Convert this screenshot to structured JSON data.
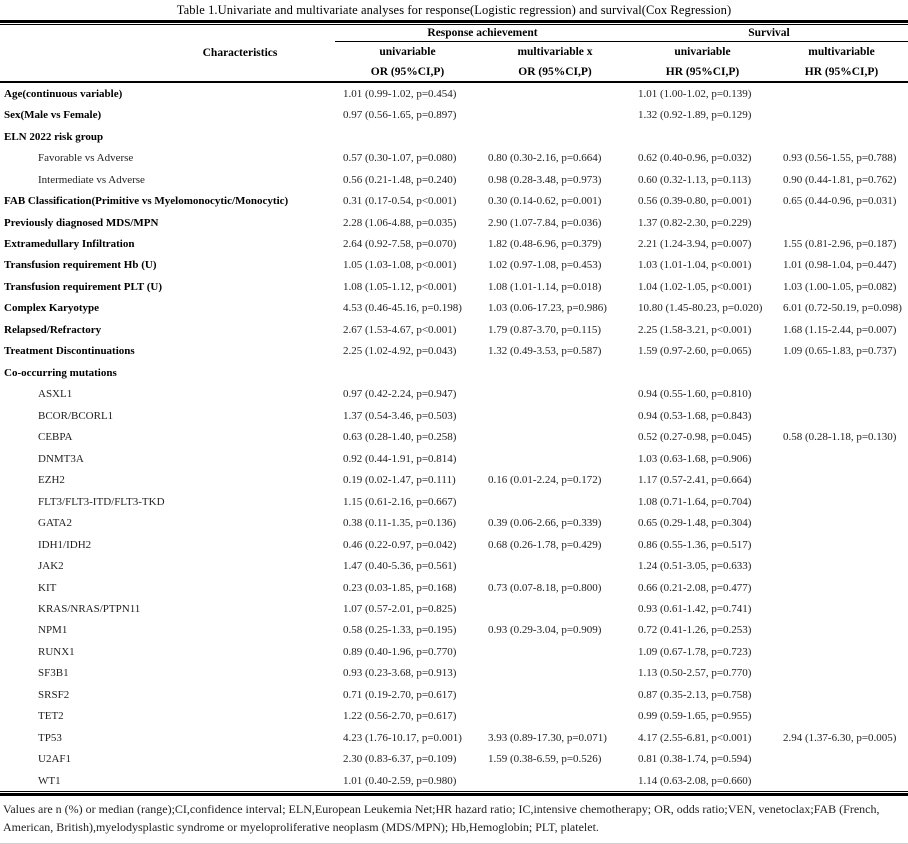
{
  "title": "Table 1.Univariate and multivariate analyses for response(Logistic regression) and survival(Cox Regression)",
  "header": {
    "characteristics": "Characteristics",
    "groups": [
      {
        "label": "Response achievement"
      },
      {
        "label": "Survival"
      }
    ],
    "subcols": [
      {
        "label": "univariable",
        "measure": "OR (95%CI,P)"
      },
      {
        "label": "multivariable x",
        "measure": "OR (95%CI,P)"
      },
      {
        "label": "univariable",
        "measure": "HR (95%CI,P)"
      },
      {
        "label": "multivariable",
        "measure": "HR (95%CI,P)"
      }
    ]
  },
  "rows": [
    {
      "label": "Age(continuous variable)",
      "indent": false,
      "values": [
        "1.01 (0.99-1.02, p=0.454)",
        "",
        "1.01 (1.00-1.02, p=0.139)",
        ""
      ]
    },
    {
      "label": "Sex(Male vs Female)",
      "indent": false,
      "values": [
        "0.97 (0.56-1.65, p=0.897)",
        "",
        "1.32 (0.92-1.89, p=0.129)",
        ""
      ]
    },
    {
      "label": "ELN 2022 risk group",
      "indent": false,
      "values": [
        "",
        "",
        "",
        ""
      ]
    },
    {
      "label": "Favorable vs Adverse",
      "indent": true,
      "values": [
        "0.57 (0.30-1.07, p=0.080)",
        "0.80 (0.30-2.16, p=0.664)",
        "0.62 (0.40-0.96, p=0.032)",
        "0.93 (0.56-1.55, p=0.788)"
      ]
    },
    {
      "label": "Intermediate vs Adverse",
      "indent": true,
      "values": [
        "0.56 (0.21-1.48, p=0.240)",
        "0.98 (0.28-3.48, p=0.973)",
        "0.60 (0.32-1.13, p=0.113)",
        "0.90 (0.44-1.81, p=0.762)"
      ]
    },
    {
      "label": "FAB Classification(Primitive vs Myelomonocytic/Monocytic)",
      "indent": false,
      "values": [
        "0.31 (0.17-0.54, p<0.001)",
        "0.30 (0.14-0.62, p=0.001)",
        "0.56 (0.39-0.80, p=0.001)",
        "0.65 (0.44-0.96, p=0.031)"
      ]
    },
    {
      "label": "Previously diagnosed MDS/MPN",
      "indent": false,
      "values": [
        "2.28 (1.06-4.88, p=0.035)",
        "2.90 (1.07-7.84, p=0.036)",
        "1.37 (0.82-2.30, p=0.229)",
        ""
      ]
    },
    {
      "label": "Extramedullary Infiltration",
      "indent": false,
      "values": [
        "2.64 (0.92-7.58, p=0.070)",
        "1.82 (0.48-6.96, p=0.379)",
        "2.21 (1.24-3.94, p=0.007)",
        "1.55 (0.81-2.96, p=0.187)"
      ]
    },
    {
      "label": "Transfusion requirement Hb (U)",
      "indent": false,
      "values": [
        "1.05 (1.03-1.08, p<0.001)",
        "1.02 (0.97-1.08, p=0.453)",
        "1.03 (1.01-1.04, p<0.001)",
        "1.01 (0.98-1.04, p=0.447)"
      ]
    },
    {
      "label": "Transfusion requirement PLT (U)",
      "indent": false,
      "values": [
        "1.08 (1.05-1.12, p<0.001)",
        "1.08 (1.01-1.14, p=0.018)",
        "1.04 (1.02-1.05, p<0.001)",
        "1.03 (1.00-1.05, p=0.082)"
      ]
    },
    {
      "label": "Complex Karyotype",
      "indent": false,
      "values": [
        "4.53 (0.46-45.16, p=0.198)",
        "1.03 (0.06-17.23, p=0.986)",
        "10.80 (1.45-80.23, p=0.020)",
        "6.01 (0.72-50.19, p=0.098)"
      ]
    },
    {
      "label": "Relapsed/Refractory",
      "indent": false,
      "values": [
        "2.67 (1.53-4.67, p<0.001)",
        "1.79 (0.87-3.70, p=0.115)",
        "2.25 (1.58-3.21, p<0.001)",
        "1.68 (1.15-2.44, p=0.007)"
      ]
    },
    {
      "label": "Treatment Discontinuations",
      "indent": false,
      "values": [
        "2.25 (1.02-4.92, p=0.043)",
        "1.32 (0.49-3.53, p=0.587)",
        "1.59 (0.97-2.60, p=0.065)",
        "1.09 (0.65-1.83, p=0.737)"
      ]
    },
    {
      "label": "Co-occurring mutations",
      "indent": false,
      "values": [
        "",
        "",
        "",
        ""
      ]
    },
    {
      "label": "ASXL1",
      "indent": true,
      "values": [
        "0.97 (0.42-2.24, p=0.947)",
        "",
        "0.94 (0.55-1.60, p=0.810)",
        ""
      ]
    },
    {
      "label": "BCOR/BCORL1",
      "indent": true,
      "values": [
        "1.37 (0.54-3.46, p=0.503)",
        "",
        "0.94 (0.53-1.68, p=0.843)",
        ""
      ]
    },
    {
      "label": "CEBPA",
      "indent": true,
      "values": [
        "0.63 (0.28-1.40, p=0.258)",
        "",
        "0.52 (0.27-0.98, p=0.045)",
        "0.58 (0.28-1.18, p=0.130)"
      ]
    },
    {
      "label": "DNMT3A",
      "indent": true,
      "values": [
        "0.92 (0.44-1.91, p=0.814)",
        "",
        "1.03 (0.63-1.68, p=0.906)",
        ""
      ]
    },
    {
      "label": "EZH2",
      "indent": true,
      "values": [
        "0.19 (0.02-1.47, p=0.111)",
        "0.16 (0.01-2.24, p=0.172)",
        "1.17 (0.57-2.41, p=0.664)",
        ""
      ]
    },
    {
      "label": "FLT3/FLT3-ITD/FLT3-TKD",
      "indent": true,
      "values": [
        "1.15 (0.61-2.16, p=0.667)",
        "",
        "1.08 (0.71-1.64, p=0.704)",
        ""
      ]
    },
    {
      "label": "GATA2",
      "indent": true,
      "values": [
        "0.38 (0.11-1.35, p=0.136)",
        "0.39 (0.06-2.66, p=0.339)",
        "0.65 (0.29-1.48, p=0.304)",
        ""
      ]
    },
    {
      "label": "IDH1/IDH2",
      "indent": true,
      "values": [
        "0.46 (0.22-0.97, p=0.042)",
        "0.68 (0.26-1.78, p=0.429)",
        "0.86 (0.55-1.36, p=0.517)",
        ""
      ]
    },
    {
      "label": "JAK2",
      "indent": true,
      "values": [
        "1.47 (0.40-5.36, p=0.561)",
        "",
        "1.24 (0.51-3.05, p=0.633)",
        ""
      ]
    },
    {
      "label": "KIT",
      "indent": true,
      "values": [
        "0.23 (0.03-1.85, p=0.168)",
        "0.73 (0.07-8.18, p=0.800)",
        "0.66 (0.21-2.08, p=0.477)",
        ""
      ]
    },
    {
      "label": "KRAS/NRAS/PTPN11",
      "indent": true,
      "values": [
        "1.07 (0.57-2.01, p=0.825)",
        "",
        "0.93 (0.61-1.42, p=0.741)",
        ""
      ]
    },
    {
      "label": "NPM1",
      "indent": true,
      "values": [
        "0.58 (0.25-1.33, p=0.195)",
        "0.93 (0.29-3.04, p=0.909)",
        "0.72 (0.41-1.26, p=0.253)",
        ""
      ]
    },
    {
      "label": "RUNX1",
      "indent": true,
      "values": [
        "0.89 (0.40-1.96, p=0.770)",
        "",
        "1.09 (0.67-1.78, p=0.723)",
        ""
      ]
    },
    {
      "label": "SF3B1",
      "indent": true,
      "values": [
        "0.93 (0.23-3.68, p=0.913)",
        "",
        "1.13 (0.50-2.57, p=0.770)",
        ""
      ]
    },
    {
      "label": "SRSF2",
      "indent": true,
      "values": [
        "0.71 (0.19-2.70, p=0.617)",
        "",
        "0.87 (0.35-2.13, p=0.758)",
        ""
      ]
    },
    {
      "label": "TET2",
      "indent": true,
      "values": [
        "1.22 (0.56-2.70, p=0.617)",
        "",
        "0.99 (0.59-1.65, p=0.955)",
        ""
      ]
    },
    {
      "label": "TP53",
      "indent": true,
      "values": [
        "4.23 (1.76-10.17, p=0.001)",
        "3.93 (0.89-17.30, p=0.071)",
        "4.17 (2.55-6.81, p<0.001)",
        "2.94 (1.37-6.30, p=0.005)"
      ]
    },
    {
      "label": "U2AF1",
      "indent": true,
      "values": [
        "2.30 (0.83-6.37, p=0.109)",
        "1.59 (0.38-6.59, p=0.526)",
        "0.81 (0.38-1.74, p=0.594)",
        ""
      ]
    },
    {
      "label": "WT1",
      "indent": true,
      "values": [
        "1.01 (0.40-2.59, p=0.980)",
        "",
        "1.14 (0.63-2.08, p=0.660)",
        ""
      ]
    }
  ],
  "footnote": {
    "line1": "Values are n (%) or median (range);CI,confidence interval; ELN,European Leukemia Net;HR hazard ratio; IC,intensive chemotherapy; OR, odds ratio;VEN, venetoclax;FAB (French,",
    "line2": "American, British),myelodysplastic syndrome or myeloproliferative neoplasm (MDS/MPN); Hb,Hemoglobin; PLT, platelet."
  },
  "colors": {
    "text": "#000000",
    "value_text": "#1f1f1f",
    "rule": "#000000",
    "bottom_hairline": "#cfcfcf",
    "background": "#ffffff"
  }
}
